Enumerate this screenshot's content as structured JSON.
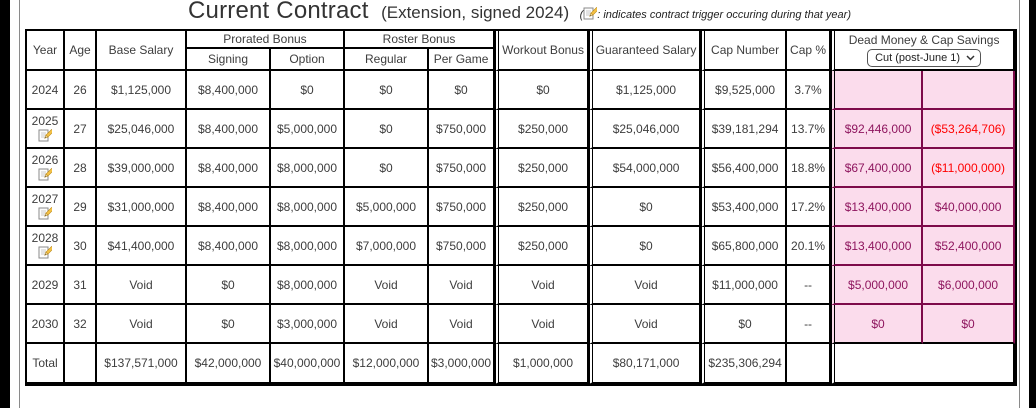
{
  "page": {
    "title": "Current Contract",
    "subtitle": "(Extension, signed 2024)",
    "note_open": "(",
    "note_text": ": indicates contract trigger occuring during that year",
    "note_close": ")"
  },
  "colors": {
    "dead_money_bg": "#fbdcec",
    "dead_money_border": "#7d0a4a",
    "dead_money_text": "#8e155e",
    "negative_text": "#ff0000"
  },
  "table": {
    "headers": {
      "year": "Year",
      "age": "Age",
      "base_salary": "Base Salary",
      "prorated_bonus": "Prorated Bonus",
      "signing": "Signing",
      "option": "Option",
      "roster_bonus": "Roster Bonus",
      "regular": "Regular",
      "per_game": "Per Game",
      "workout_bonus": "Workout Bonus",
      "guaranteed_salary": "Guaranteed Salary",
      "cap_number": "Cap Number",
      "cap_pct": "Cap %",
      "dead_money_group": "Dead Money & Cap Savings",
      "dead_money_select": "Cut (post-June 1)"
    },
    "rows": [
      {
        "year": "2024",
        "trigger": false,
        "age": "26",
        "base": "$1,125,000",
        "signing": "$8,400,000",
        "option": "$0",
        "regular": "$0",
        "per_game": "$0",
        "workout": "$0",
        "guaranteed": "$1,125,000",
        "cap_number": "$9,525,000",
        "cap_pct": "3.7%",
        "dead": "",
        "savings": "",
        "savings_negative": false
      },
      {
        "year": "2025",
        "trigger": true,
        "age": "27",
        "base": "$25,046,000",
        "signing": "$8,400,000",
        "option": "$5,000,000",
        "regular": "$0",
        "per_game": "$750,000",
        "workout": "$250,000",
        "guaranteed": "$25,046,000",
        "cap_number": "$39,181,294",
        "cap_pct": "13.7%",
        "dead": "$92,446,000",
        "savings": "($53,264,706)",
        "savings_negative": true
      },
      {
        "year": "2026",
        "trigger": true,
        "age": "28",
        "base": "$39,000,000",
        "signing": "$8,400,000",
        "option": "$8,000,000",
        "regular": "$0",
        "per_game": "$750,000",
        "workout": "$250,000",
        "guaranteed": "$54,000,000",
        "cap_number": "$56,400,000",
        "cap_pct": "18.8%",
        "dead": "$67,400,000",
        "savings": "($11,000,000)",
        "savings_negative": true
      },
      {
        "year": "2027",
        "trigger": true,
        "age": "29",
        "base": "$31,000,000",
        "signing": "$8,400,000",
        "option": "$8,000,000",
        "regular": "$5,000,000",
        "per_game": "$750,000",
        "workout": "$250,000",
        "guaranteed": "$0",
        "cap_number": "$53,400,000",
        "cap_pct": "17.2%",
        "dead": "$13,400,000",
        "savings": "$40,000,000",
        "savings_negative": false
      },
      {
        "year": "2028",
        "trigger": true,
        "age": "30",
        "base": "$41,400,000",
        "signing": "$8,400,000",
        "option": "$8,000,000",
        "regular": "$7,000,000",
        "per_game": "$750,000",
        "workout": "$250,000",
        "guaranteed": "$0",
        "cap_number": "$65,800,000",
        "cap_pct": "20.1%",
        "dead": "$13,400,000",
        "savings": "$52,400,000",
        "savings_negative": false
      },
      {
        "year": "2029",
        "trigger": false,
        "age": "31",
        "base": "Void",
        "signing": "$0",
        "option": "$8,000,000",
        "regular": "Void",
        "per_game": "Void",
        "workout": "Void",
        "guaranteed": "Void",
        "cap_number": "$11,000,000",
        "cap_pct": "--",
        "dead": "$5,000,000",
        "savings": "$6,000,000",
        "savings_negative": false
      },
      {
        "year": "2030",
        "trigger": false,
        "age": "32",
        "base": "Void",
        "signing": "$0",
        "option": "$3,000,000",
        "regular": "Void",
        "per_game": "Void",
        "workout": "Void",
        "guaranteed": "Void",
        "cap_number": "$0",
        "cap_pct": "--",
        "dead": "$0",
        "savings": "$0",
        "savings_negative": false
      }
    ],
    "total": {
      "label": "Total",
      "age": "",
      "base": "$137,571,000",
      "signing": "$42,000,000",
      "option": "$40,000,000",
      "regular": "$12,000,000",
      "per_game": "$3,000,000",
      "workout": "$1,000,000",
      "guaranteed": "$80,171,000",
      "cap_number": "$235,306,294",
      "cap_pct": ""
    }
  }
}
